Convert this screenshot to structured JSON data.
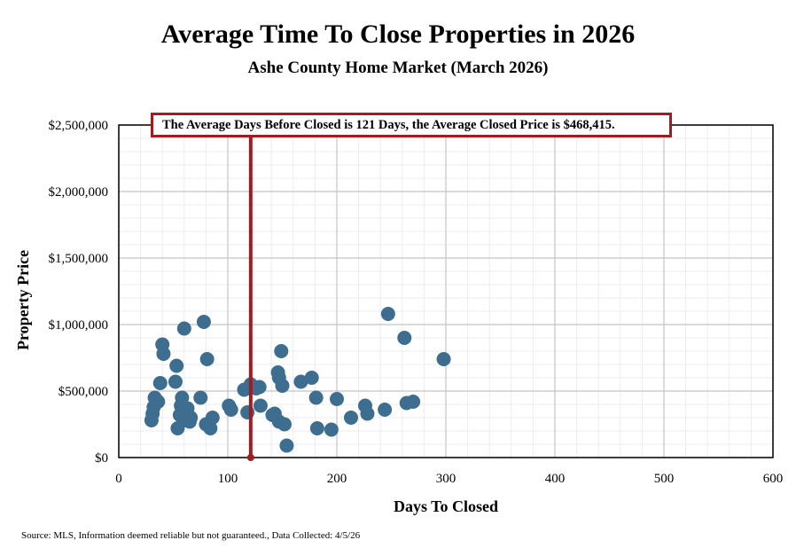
{
  "chart_data": {
    "type": "scatter",
    "title": "Average Time To Close Properties in 2026",
    "subtitle": "Ashe County Home Market (March 2026)",
    "xlabel": "Days To Closed",
    "ylabel": "Property Price",
    "xlim": [
      0,
      600
    ],
    "ylim": [
      0,
      2500000
    ],
    "xticks": [
      0,
      100,
      200,
      300,
      400,
      500,
      600
    ],
    "xtick_labels": [
      "0",
      "100",
      "200",
      "300",
      "400",
      "500",
      "600"
    ],
    "yticks": [
      0,
      500000,
      1000000,
      1500000,
      2000000,
      2500000
    ],
    "ytick_labels": [
      "$0",
      "$500,000",
      "$1,000,000",
      "$1,500,000",
      "$2,000,000",
      "$2,500,000"
    ],
    "grid": true,
    "reference_line": {
      "x": 121,
      "label": "The Average Days Before Closed is 121 Days, the Average Closed Price is $468,415."
    },
    "point_color": "#3d6e8f",
    "reference_color": "#a11b1f",
    "points": [
      [
        30,
        280000
      ],
      [
        31,
        330000
      ],
      [
        32,
        380000
      ],
      [
        33,
        450000
      ],
      [
        36,
        420000
      ],
      [
        38,
        560000
      ],
      [
        40,
        850000
      ],
      [
        41,
        780000
      ],
      [
        52,
        570000
      ],
      [
        53,
        690000
      ],
      [
        54,
        220000
      ],
      [
        56,
        320000
      ],
      [
        57,
        390000
      ],
      [
        58,
        450000
      ],
      [
        60,
        970000
      ],
      [
        61,
        280000
      ],
      [
        63,
        370000
      ],
      [
        65,
        270000
      ],
      [
        66,
        300000
      ],
      [
        75,
        450000
      ],
      [
        78,
        1020000
      ],
      [
        80,
        250000
      ],
      [
        81,
        740000
      ],
      [
        84,
        220000
      ],
      [
        86,
        300000
      ],
      [
        101,
        390000
      ],
      [
        103,
        360000
      ],
      [
        115,
        510000
      ],
      [
        118,
        340000
      ],
      [
        121,
        550000
      ],
      [
        126,
        520000
      ],
      [
        129,
        530000
      ],
      [
        130,
        390000
      ],
      [
        141,
        320000
      ],
      [
        143,
        330000
      ],
      [
        146,
        640000
      ],
      [
        147,
        600000
      ],
      [
        147,
        270000
      ],
      [
        149,
        800000
      ],
      [
        150,
        540000
      ],
      [
        152,
        250000
      ],
      [
        154,
        90000
      ],
      [
        167,
        570000
      ],
      [
        177,
        600000
      ],
      [
        181,
        450000
      ],
      [
        182,
        220000
      ],
      [
        195,
        210000
      ],
      [
        200,
        440000
      ],
      [
        213,
        300000
      ],
      [
        226,
        390000
      ],
      [
        228,
        330000
      ],
      [
        244,
        360000
      ],
      [
        247,
        1080000
      ],
      [
        262,
        900000
      ],
      [
        264,
        410000
      ],
      [
        270,
        420000
      ],
      [
        298,
        740000
      ]
    ]
  },
  "source_note": "Source: MLS, Information deemed reliable but not guaranteed., Data Collected: 4/5/26"
}
